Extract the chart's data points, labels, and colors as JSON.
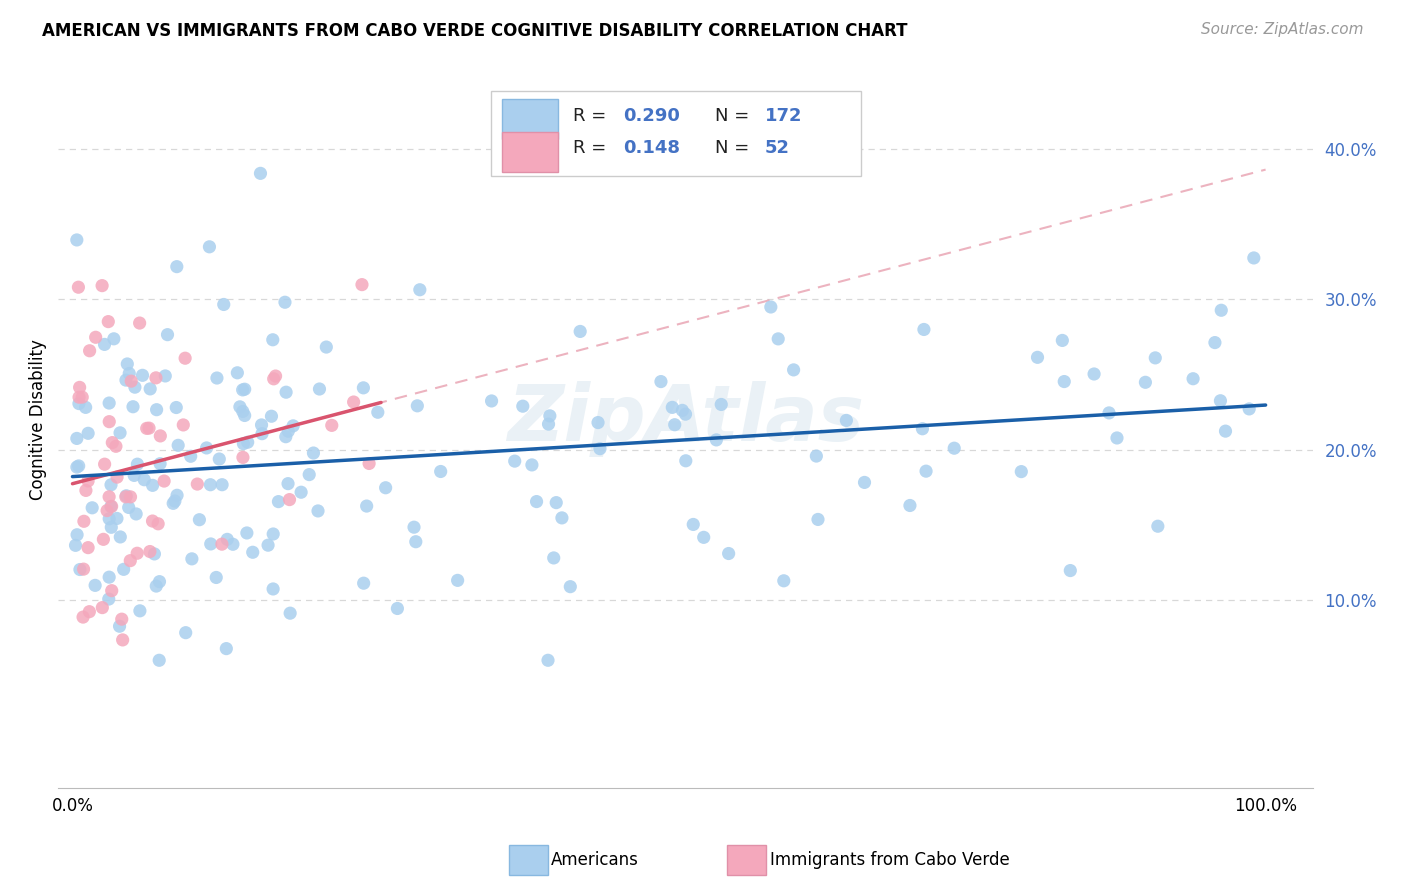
{
  "title": "AMERICAN VS IMMIGRANTS FROM CABO VERDE COGNITIVE DISABILITY CORRELATION CHART",
  "source": "Source: ZipAtlas.com",
  "ylabel": "Cognitive Disability",
  "legend_americans": "Americans",
  "legend_immigrants": "Immigrants from Cabo Verde",
  "r_american": "0.290",
  "n_american": "172",
  "r_immigrant": "0.148",
  "n_immigrant": "52",
  "american_color": "#aacfee",
  "immigrant_color": "#f4a8bc",
  "trendline_american_color": "#1a5fa8",
  "trendline_immigrant_color": "#d9546e",
  "trendline_dashed_color": "#e8a0b0",
  "watermark": "ZipAtlas",
  "watermark_color": "#dce8f0",
  "ytick_color": "#4472c4",
  "background_color": "#ffffff",
  "grid_color": "#d8d8d8",
  "title_fontsize": 12,
  "source_fontsize": 11,
  "tick_fontsize": 12,
  "legend_fontsize": 13
}
